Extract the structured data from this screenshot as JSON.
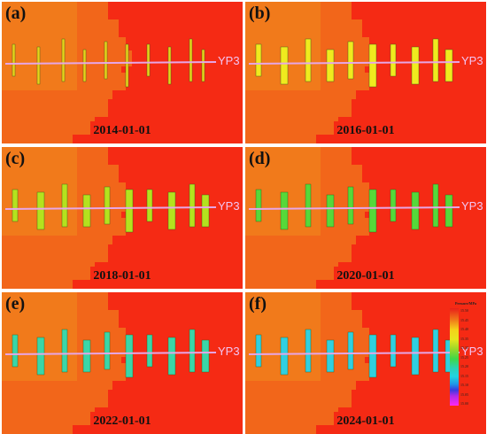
{
  "well_label": "YP3",
  "panels": [
    {
      "letter": "(a)",
      "date": "2014-01-01",
      "fracture_color": "#e8d21a"
    },
    {
      "letter": "(b)",
      "date": "2016-01-01",
      "fracture_color": "#f0ea1e"
    },
    {
      "letter": "(c)",
      "date": "2018-01-01",
      "fracture_color": "#b4e21e"
    },
    {
      "letter": "(d)",
      "date": "2020-01-01",
      "fracture_color": "#56d83a"
    },
    {
      "letter": "(e)",
      "date": "2022-01-01",
      "fracture_color": "#3ad6a8"
    },
    {
      "letter": "(f)",
      "date": "2024-01-01",
      "fracture_color": "#30cfe0"
    }
  ],
  "legend": {
    "title": "Pressure/MPa",
    "ticks": [
      "15.50",
      "15.45",
      "15.40",
      "15.35",
      "15.30",
      "15.25",
      "15.20",
      "15.15",
      "15.10",
      "15.05",
      "15.00"
    ]
  }
}
